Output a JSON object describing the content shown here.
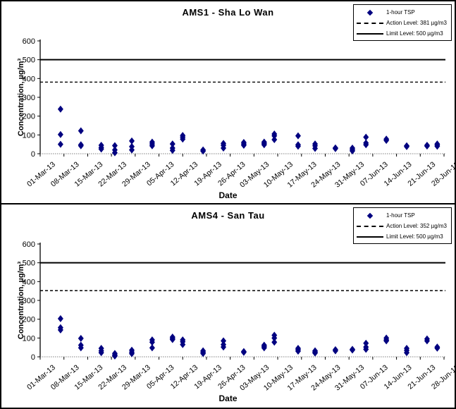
{
  "chart_data": [
    {
      "type": "scatter",
      "title": "AMS1 - Sha Lo Wan",
      "xlabel": "Date",
      "ylabel": "Concentration, µg/m³",
      "ylim": [
        0,
        600
      ],
      "ytick_step": 100,
      "marker_color": "#000080",
      "line_color": "#000000",
      "action_level": 381,
      "limit_level": 500,
      "legend": [
        {
          "marker": "diamond-marker",
          "label": "1-hour TSP"
        },
        {
          "marker": "dashed-line",
          "label": "Action Level: 381 µg/m3"
        },
        {
          "marker": "solid-line",
          "label": "Limit Level: 500 µg/m3"
        }
      ],
      "categories": [
        "01-Mar-13",
        "08-Mar-13",
        "15-Mar-13",
        "22-Mar-13",
        "29-Mar-13",
        "05-Apr-13",
        "12-Apr-13",
        "19-Apr-13",
        "26-Apr-13",
        "03-May-13",
        "10-May-13",
        "17-May-13",
        "24-May-13",
        "31-May-13",
        "07-Jun-13",
        "14-Jun-13",
        "21-Jun-13",
        "28-Jun-13"
      ],
      "x_span_days": 119,
      "points_day_value": [
        [
          6,
          237
        ],
        [
          6,
          102
        ],
        [
          6,
          50
        ],
        [
          12,
          122
        ],
        [
          12,
          48
        ],
        [
          12,
          42
        ],
        [
          18,
          45
        ],
        [
          18,
          33
        ],
        [
          18,
          25
        ],
        [
          22,
          43
        ],
        [
          22,
          20
        ],
        [
          22,
          5
        ],
        [
          27,
          68
        ],
        [
          27,
          38
        ],
        [
          27,
          20
        ],
        [
          33,
          62
        ],
        [
          33,
          52
        ],
        [
          33,
          42
        ],
        [
          39,
          52
        ],
        [
          39,
          30
        ],
        [
          39,
          18
        ],
        [
          42,
          97
        ],
        [
          42,
          88
        ],
        [
          42,
          78
        ],
        [
          48,
          20
        ],
        [
          48,
          14
        ],
        [
          54,
          55
        ],
        [
          54,
          45
        ],
        [
          54,
          30
        ],
        [
          60,
          60
        ],
        [
          60,
          52
        ],
        [
          60,
          45
        ],
        [
          66,
          62
        ],
        [
          66,
          55
        ],
        [
          66,
          48
        ],
        [
          69,
          105
        ],
        [
          69,
          95
        ],
        [
          69,
          75
        ],
        [
          76,
          95
        ],
        [
          76,
          48
        ],
        [
          76,
          40
        ],
        [
          81,
          52
        ],
        [
          81,
          42
        ],
        [
          81,
          28
        ],
        [
          87,
          31
        ],
        [
          87,
          27
        ],
        [
          92,
          30
        ],
        [
          92,
          22
        ],
        [
          92,
          15
        ],
        [
          96,
          88
        ],
        [
          96,
          57
        ],
        [
          96,
          48
        ],
        [
          102,
          78
        ],
        [
          102,
          71
        ],
        [
          108,
          42
        ],
        [
          108,
          38
        ],
        [
          114,
          45
        ],
        [
          114,
          41
        ],
        [
          117,
          52
        ],
        [
          117,
          46
        ],
        [
          117,
          40
        ]
      ]
    },
    {
      "type": "scatter",
      "title": "AMS4 - San Tau",
      "xlabel": "Date",
      "ylabel": "Concentration, µg/m³",
      "ylim": [
        0,
        600
      ],
      "ytick_step": 100,
      "marker_color": "#000080",
      "line_color": "#000000",
      "action_level": 352,
      "limit_level": 500,
      "legend": [
        {
          "marker": "diamond-marker",
          "label": "1-hour TSP"
        },
        {
          "marker": "dashed-line",
          "label": "Action Level: 352 µg/m3"
        },
        {
          "marker": "solid-line",
          "label": "Limit Level: 500 µg/m3"
        }
      ],
      "categories": [
        "01-Mar-13",
        "08-Mar-13",
        "15-Mar-13",
        "22-Mar-13",
        "29-Mar-13",
        "05-Apr-13",
        "12-Apr-13",
        "19-Apr-13",
        "26-Apr-13",
        "03-May-13",
        "10-May-13",
        "17-May-13",
        "24-May-13",
        "31-May-13",
        "07-Jun-13",
        "14-Jun-13",
        "21-Jun-13",
        "28-Jun-13"
      ],
      "x_span_days": 119,
      "points_day_value": [
        [
          6,
          203
        ],
        [
          6,
          155
        ],
        [
          6,
          143
        ],
        [
          12,
          98
        ],
        [
          12,
          62
        ],
        [
          12,
          48
        ],
        [
          18,
          45
        ],
        [
          18,
          32
        ],
        [
          18,
          22
        ],
        [
          22,
          18
        ],
        [
          22,
          10
        ],
        [
          22,
          4
        ],
        [
          27,
          35
        ],
        [
          27,
          25
        ],
        [
          27,
          17
        ],
        [
          33,
          90
        ],
        [
          33,
          78
        ],
        [
          33,
          48
        ],
        [
          39,
          105
        ],
        [
          39,
          98
        ],
        [
          39,
          92
        ],
        [
          42,
          90
        ],
        [
          42,
          80
        ],
        [
          42,
          65
        ],
        [
          48,
          32
        ],
        [
          48,
          25
        ],
        [
          48,
          18
        ],
        [
          54,
          85
        ],
        [
          54,
          65
        ],
        [
          54,
          52
        ],
        [
          60,
          28
        ],
        [
          60,
          24
        ],
        [
          66,
          62
        ],
        [
          66,
          55
        ],
        [
          66,
          48
        ],
        [
          69,
          115
        ],
        [
          69,
          100
        ],
        [
          69,
          78
        ],
        [
          76,
          45
        ],
        [
          76,
          38
        ],
        [
          76,
          30
        ],
        [
          81,
          32
        ],
        [
          81,
          26
        ],
        [
          81,
          20
        ],
        [
          87,
          38
        ],
        [
          87,
          32
        ],
        [
          92,
          40
        ],
        [
          92,
          36
        ],
        [
          96,
          72
        ],
        [
          96,
          52
        ],
        [
          96,
          40
        ],
        [
          102,
          100
        ],
        [
          102,
          90
        ],
        [
          102,
          85
        ],
        [
          108,
          45
        ],
        [
          108,
          34
        ],
        [
          108,
          22
        ],
        [
          114,
          95
        ],
        [
          114,
          85
        ],
        [
          117,
          52
        ],
        [
          117,
          46
        ]
      ]
    }
  ]
}
